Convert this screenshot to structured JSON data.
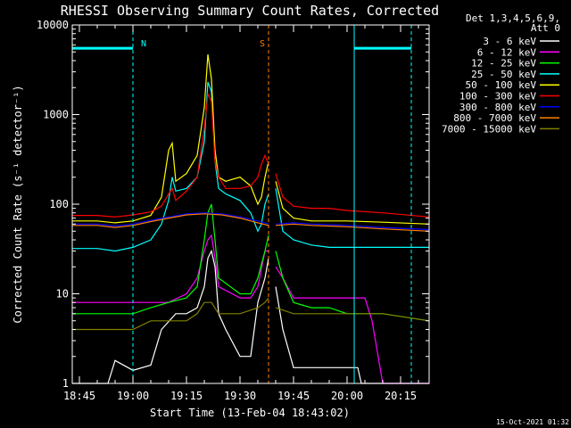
{
  "chart_data": {
    "type": "line",
    "title": "RHESSI Observing Summary Count Rates, Corrected",
    "xlabel": "Start Time (13-Feb-04 18:43:02)",
    "ylabel": "Corrected Count Rate (s⁻¹ detector⁻¹)",
    "footer": "15-Oct-2021 01:32",
    "yscale": "log",
    "xlim": [
      "18:43",
      "20:23"
    ],
    "ylim": [
      1,
      10000
    ],
    "x_ticks": [
      "18:45",
      "19:00",
      "19:15",
      "19:30",
      "19:45",
      "20:00",
      "20:15"
    ],
    "y_ticks": [
      {
        "value": 1,
        "label": "1"
      },
      {
        "value": 10,
        "label": "10"
      },
      {
        "value": 100,
        "label": "100"
      },
      {
        "value": 1000,
        "label": "1000"
      },
      {
        "value": 10000,
        "label": "10000"
      }
    ],
    "legend_header": [
      "Det 1,3,4,5,6,9,",
      "Att 0"
    ],
    "legend_position": "right",
    "flags": [
      {
        "label": "N",
        "color": "#00ffff",
        "intervals": [
          [
            "18:43",
            "19:00"
          ],
          [
            "20:02",
            "20:18"
          ]
        ],
        "level": 5500
      },
      {
        "label": "S",
        "color": "#ff8000",
        "intervals": [
          [
            "19:38",
            "19:38"
          ]
        ],
        "level": 5500
      }
    ],
    "vertical_lines": [
      {
        "time": "18:43",
        "color": "#00ffff",
        "style": "solid"
      },
      {
        "time": "19:00",
        "color": "#00ffff",
        "style": "dashed"
      },
      {
        "time": "19:38",
        "color": "#ff8000",
        "style": "dashed"
      },
      {
        "time": "20:02",
        "color": "#00ffff",
        "style": "solid"
      },
      {
        "time": "20:18",
        "color": "#00ffff",
        "style": "dashed"
      }
    ],
    "gap": [
      "19:38",
      "19:40"
    ],
    "series": [
      {
        "name": "3 - 6 keV",
        "color": "#ffffff",
        "points": [
          [
            "18:43",
            1
          ],
          [
            "18:45",
            1
          ],
          [
            "18:53",
            1
          ],
          [
            "18:55",
            1.8
          ],
          [
            "19:00",
            1.4
          ],
          [
            "19:05",
            1.6
          ],
          [
            "19:08",
            4
          ],
          [
            "19:12",
            6
          ],
          [
            "19:15",
            6
          ],
          [
            "19:18",
            7
          ],
          [
            "19:20",
            12
          ],
          [
            "19:21",
            25
          ],
          [
            "19:22",
            30
          ],
          [
            "19:23",
            20
          ],
          [
            "19:24",
            6
          ],
          [
            "19:26",
            4
          ],
          [
            "19:30",
            2
          ],
          [
            "19:33",
            2
          ],
          [
            "19:35",
            8
          ],
          [
            "19:37",
            15
          ],
          [
            "19:38",
            25
          ],
          [
            "19:40",
            12
          ],
          [
            "19:42",
            4
          ],
          [
            "19:45",
            1.5
          ],
          [
            "19:50",
            1.5
          ],
          [
            "19:55",
            1.5
          ],
          [
            "20:00",
            1.5
          ],
          [
            "20:03",
            1.5
          ],
          [
            "20:04",
            1
          ],
          [
            "20:23",
            1
          ]
        ]
      },
      {
        "name": "6 - 12 keV",
        "color": "#ff00ff",
        "points": [
          [
            "18:43",
            8
          ],
          [
            "18:57",
            8
          ],
          [
            "19:00",
            8
          ],
          [
            "19:05",
            8
          ],
          [
            "19:10",
            8
          ],
          [
            "19:15",
            10
          ],
          [
            "19:18",
            15
          ],
          [
            "19:20",
            30
          ],
          [
            "19:21",
            40
          ],
          [
            "19:22",
            45
          ],
          [
            "19:23",
            25
          ],
          [
            "19:24",
            12
          ],
          [
            "19:30",
            9
          ],
          [
            "19:33",
            9
          ],
          [
            "19:35",
            12
          ],
          [
            "19:37",
            30
          ],
          [
            "19:38",
            30
          ],
          [
            "19:40",
            20
          ],
          [
            "19:42",
            15
          ],
          [
            "19:45",
            9
          ],
          [
            "19:50",
            9
          ],
          [
            "19:55",
            9
          ],
          [
            "20:00",
            9
          ],
          [
            "20:05",
            9
          ],
          [
            "20:07",
            5
          ],
          [
            "20:10",
            1
          ],
          [
            "20:23",
            1
          ]
        ]
      },
      {
        "name": "12 - 25 keV",
        "color": "#00ff00",
        "points": [
          [
            "18:43",
            6
          ],
          [
            "18:50",
            6
          ],
          [
            "18:55",
            6
          ],
          [
            "19:00",
            6
          ],
          [
            "19:05",
            7
          ],
          [
            "19:10",
            8
          ],
          [
            "19:15",
            9
          ],
          [
            "19:18",
            12
          ],
          [
            "19:20",
            40
          ],
          [
            "19:21",
            80
          ],
          [
            "19:22",
            100
          ],
          [
            "19:23",
            40
          ],
          [
            "19:24",
            15
          ],
          [
            "19:30",
            10
          ],
          [
            "19:33",
            10
          ],
          [
            "19:35",
            15
          ],
          [
            "19:37",
            30
          ],
          [
            "19:38",
            45
          ],
          [
            "19:40",
            30
          ],
          [
            "19:42",
            15
          ],
          [
            "19:45",
            8
          ],
          [
            "19:50",
            7
          ],
          [
            "19:55",
            7
          ],
          [
            "20:00",
            6
          ],
          [
            "20:10",
            6
          ],
          [
            "20:23",
            5
          ]
        ]
      },
      {
        "name": "25 - 50 keV",
        "color": "#00ffff",
        "points": [
          [
            "18:43",
            32
          ],
          [
            "18:50",
            32
          ],
          [
            "18:55",
            30
          ],
          [
            "19:00",
            33
          ],
          [
            "19:05",
            40
          ],
          [
            "19:08",
            60
          ],
          [
            "19:10",
            110
          ],
          [
            "19:11",
            200
          ],
          [
            "19:12",
            140
          ],
          [
            "19:15",
            150
          ],
          [
            "19:18",
            200
          ],
          [
            "19:20",
            500
          ],
          [
            "19:21",
            2300
          ],
          [
            "19:22",
            1800
          ],
          [
            "19:23",
            300
          ],
          [
            "19:24",
            150
          ],
          [
            "19:26",
            130
          ],
          [
            "19:30",
            110
          ],
          [
            "19:33",
            80
          ],
          [
            "19:35",
            50
          ],
          [
            "19:36",
            60
          ],
          [
            "19:37",
            100
          ],
          [
            "19:38",
            130
          ],
          [
            "19:40",
            150
          ],
          [
            "19:42",
            50
          ],
          [
            "19:45",
            40
          ],
          [
            "19:50",
            35
          ],
          [
            "19:55",
            33
          ],
          [
            "20:00",
            33
          ],
          [
            "20:10",
            33
          ],
          [
            "20:23",
            33
          ]
        ]
      },
      {
        "name": "50 - 100 keV",
        "color": "#ffff00",
        "points": [
          [
            "18:43",
            65
          ],
          [
            "18:50",
            65
          ],
          [
            "18:55",
            62
          ],
          [
            "19:00",
            65
          ],
          [
            "19:05",
            75
          ],
          [
            "19:08",
            120
          ],
          [
            "19:10",
            400
          ],
          [
            "19:11",
            480
          ],
          [
            "19:12",
            180
          ],
          [
            "19:15",
            220
          ],
          [
            "19:18",
            350
          ],
          [
            "19:20",
            1200
          ],
          [
            "19:21",
            4700
          ],
          [
            "19:22",
            2500
          ],
          [
            "19:23",
            400
          ],
          [
            "19:24",
            200
          ],
          [
            "19:26",
            180
          ],
          [
            "19:30",
            200
          ],
          [
            "19:33",
            160
          ],
          [
            "19:35",
            100
          ],
          [
            "19:36",
            120
          ],
          [
            "19:37",
            200
          ],
          [
            "19:38",
            300
          ],
          [
            "19:40",
            180
          ],
          [
            "19:42",
            90
          ],
          [
            "19:45",
            70
          ],
          [
            "19:50",
            65
          ],
          [
            "19:55",
            65
          ],
          [
            "20:00",
            65
          ],
          [
            "20:10",
            63
          ],
          [
            "20:23",
            60
          ]
        ]
      },
      {
        "name": "100 - 300 keV",
        "color": "#ff0000",
        "points": [
          [
            "18:43",
            75
          ],
          [
            "18:50",
            75
          ],
          [
            "18:55",
            72
          ],
          [
            "19:00",
            76
          ],
          [
            "19:05",
            82
          ],
          [
            "19:08",
            95
          ],
          [
            "19:10",
            130
          ],
          [
            "19:11",
            150
          ],
          [
            "19:12",
            110
          ],
          [
            "19:15",
            140
          ],
          [
            "19:18",
            200
          ],
          [
            "19:20",
            700
          ],
          [
            "19:21",
            1700
          ],
          [
            "19:22",
            1400
          ],
          [
            "19:23",
            300
          ],
          [
            "19:24",
            200
          ],
          [
            "19:26",
            150
          ],
          [
            "19:30",
            150
          ],
          [
            "19:33",
            160
          ],
          [
            "19:35",
            200
          ],
          [
            "19:36",
            280
          ],
          [
            "19:37",
            350
          ],
          [
            "19:38",
            280
          ],
          [
            "19:40",
            220
          ],
          [
            "19:42",
            120
          ],
          [
            "19:45",
            95
          ],
          [
            "19:50",
            90
          ],
          [
            "19:55",
            90
          ],
          [
            "20:00",
            85
          ],
          [
            "20:10",
            80
          ],
          [
            "20:23",
            72
          ]
        ]
      },
      {
        "name": "300 - 800 keV",
        "color": "#0000ff",
        "points": [
          [
            "18:43",
            60
          ],
          [
            "18:50",
            60
          ],
          [
            "18:55",
            57
          ],
          [
            "19:00",
            60
          ],
          [
            "19:05",
            66
          ],
          [
            "19:10",
            72
          ],
          [
            "19:15",
            78
          ],
          [
            "19:20",
            80
          ],
          [
            "19:25",
            78
          ],
          [
            "19:30",
            72
          ],
          [
            "19:35",
            65
          ],
          [
            "19:38",
            60
          ],
          [
            "19:40",
            60
          ],
          [
            "19:45",
            62
          ],
          [
            "19:50",
            60
          ],
          [
            "20:00",
            58
          ],
          [
            "20:10",
            55
          ],
          [
            "20:23",
            52
          ]
        ]
      },
      {
        "name": "800 - 7000 keV",
        "color": "#ff8000",
        "points": [
          [
            "18:43",
            58
          ],
          [
            "18:50",
            58
          ],
          [
            "18:55",
            55
          ],
          [
            "19:00",
            58
          ],
          [
            "19:05",
            64
          ],
          [
            "19:10",
            70
          ],
          [
            "19:15",
            76
          ],
          [
            "19:20",
            78
          ],
          [
            "19:25",
            76
          ],
          [
            "19:30",
            70
          ],
          [
            "19:35",
            62
          ],
          [
            "19:38",
            58
          ],
          [
            "19:40",
            58
          ],
          [
            "19:45",
            60
          ],
          [
            "19:50",
            58
          ],
          [
            "20:00",
            56
          ],
          [
            "20:10",
            53
          ],
          [
            "20:23",
            50
          ]
        ]
      },
      {
        "name": "7000 - 15000 keV",
        "color": "#808000",
        "points": [
          [
            "18:43",
            4
          ],
          [
            "18:50",
            4
          ],
          [
            "18:55",
            4
          ],
          [
            "19:00",
            4
          ],
          [
            "19:05",
            5
          ],
          [
            "19:10",
            5
          ],
          [
            "19:15",
            5
          ],
          [
            "19:18",
            6
          ],
          [
            "19:20",
            8
          ],
          [
            "19:22",
            8
          ],
          [
            "19:24",
            6
          ],
          [
            "19:30",
            6
          ],
          [
            "19:35",
            7
          ],
          [
            "19:37",
            8
          ],
          [
            "19:38",
            9
          ],
          [
            "19:40",
            7
          ],
          [
            "19:45",
            6
          ],
          [
            "19:50",
            6
          ],
          [
            "19:55",
            6
          ],
          [
            "20:00",
            6
          ],
          [
            "20:10",
            6
          ],
          [
            "20:23",
            5
          ]
        ]
      }
    ]
  }
}
